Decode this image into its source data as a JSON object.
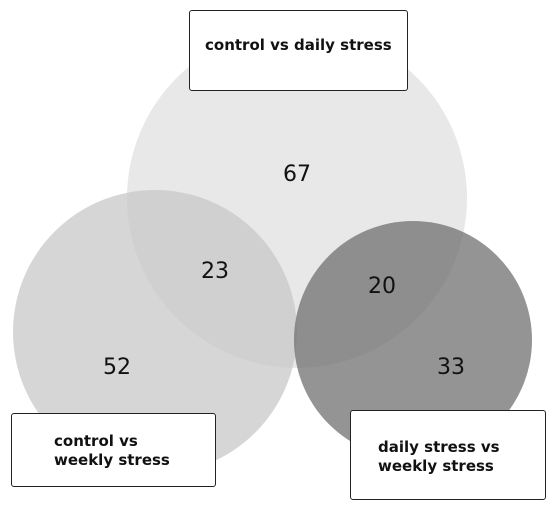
{
  "diagram": {
    "type": "venn",
    "sets": [
      {
        "label": "control vs daily stress",
        "color": "#e6e6e6"
      },
      {
        "label_lines": [
          "control vs",
          "weekly stress"
        ],
        "color": "#cccccc"
      },
      {
        "label_lines": [
          "daily stress vs",
          "weekly stress"
        ],
        "color": "#888888"
      }
    ],
    "counts": {
      "daily_only": "67",
      "control_weekly_only": "52",
      "daily_weekly_only": "33",
      "overlap_daily_and_control_weekly": "23",
      "overlap_daily_and_daily_weekly": "20"
    }
  }
}
